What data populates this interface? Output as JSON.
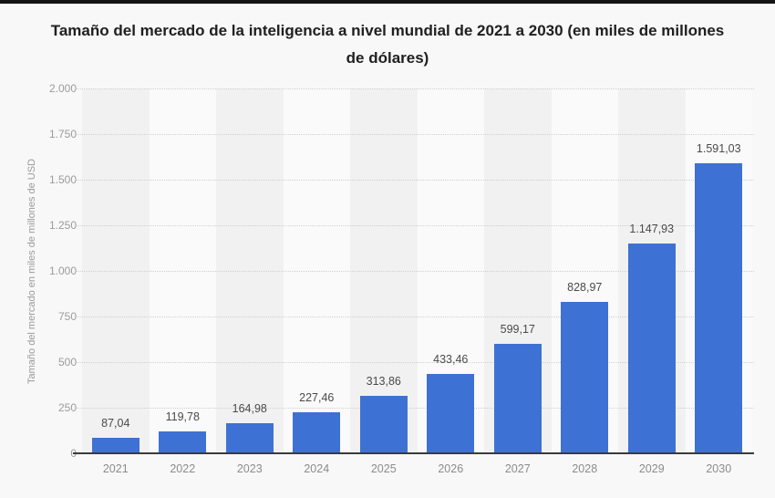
{
  "page": {
    "background_color": "#f8f8f8",
    "top_border_color": "#141414"
  },
  "chart_data": {
    "type": "bar",
    "title": "Tamaño del mercado de la inteligencia a nivel mundial de 2021 a 2030 (en miles de millones de dólares)",
    "ylabel": "Tamaño del mercado en miles de millones de USD",
    "xlabel": "",
    "categories": [
      "2021",
      "2022",
      "2023",
      "2024",
      "2025",
      "2026",
      "2027",
      "2028",
      "2029",
      "2030"
    ],
    "values": [
      87.04,
      119.78,
      164.98,
      227.46,
      313.86,
      433.46,
      599.17,
      828.97,
      1147.93,
      1591.03
    ],
    "value_labels": [
      "87,04",
      "119,78",
      "164,98",
      "227,46",
      "313,86",
      "433,46",
      "599,17",
      "828,97",
      "1.147,93",
      "1.591,03"
    ],
    "ylim": [
      0,
      2000
    ],
    "ytick_interval": 250,
    "ytick_labels": [
      "0",
      "250",
      "500",
      "750",
      "1.000",
      "1.250",
      "1.500",
      "1.750",
      "2.000"
    ],
    "grid": "horizontal-dotted",
    "legend": "none",
    "bar_color": "#3E71D4",
    "band_colors": [
      "#f1f1f1",
      "#fafafa"
    ],
    "gridline_color": "#cfcfcf",
    "axis_line_color": "#3a3a3a"
  }
}
